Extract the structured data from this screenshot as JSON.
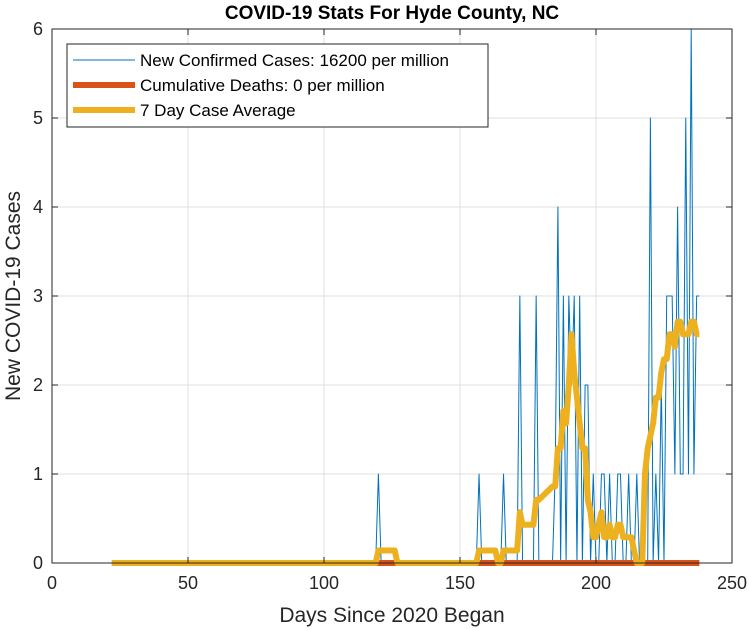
{
  "chart_data": {
    "type": "line",
    "title": "COVID-19 Stats For Hyde County, NC",
    "xlabel": "Days Since 2020 Began",
    "ylabel": "New COVID-19 Cases",
    "xlim": [
      0,
      250
    ],
    "ylim": [
      0,
      6
    ],
    "xticks": [
      0,
      50,
      100,
      150,
      200,
      250
    ],
    "yticks": [
      0,
      1,
      2,
      3,
      4,
      5,
      6
    ],
    "grid": true,
    "legend_position": "top-left",
    "series": [
      {
        "name": "New Confirmed Cases: 16200 per million",
        "color": "#0072BD",
        "x": [
          22,
          119,
          120,
          121,
          156,
          157,
          158,
          165,
          166,
          167,
          171,
          172,
          173,
          177,
          178,
          179,
          184,
          185,
          186,
          187,
          188,
          189,
          190,
          191,
          192,
          193,
          194,
          195,
          196,
          197,
          198,
          199,
          200,
          201,
          202,
          203,
          204,
          205,
          206,
          207,
          208,
          209,
          210,
          211,
          212,
          213,
          214,
          215,
          216,
          217,
          218,
          219,
          220,
          221,
          222,
          223,
          224,
          225,
          226,
          227,
          228,
          229,
          230,
          231,
          232,
          233,
          234,
          235,
          236,
          237,
          238
        ],
        "y": [
          0,
          0,
          1,
          0,
          0,
          1,
          0,
          0,
          1,
          0,
          0,
          3,
          0,
          0,
          3,
          0,
          0,
          1,
          4,
          0,
          3,
          0,
          3,
          2,
          3,
          0,
          3,
          0,
          2,
          2,
          0,
          1,
          0,
          0,
          1,
          1,
          0,
          1,
          0,
          0,
          1,
          1,
          0,
          0,
          1,
          0,
          0,
          1,
          0,
          0,
          0,
          0,
          5,
          0,
          1,
          0,
          2,
          0,
          3,
          3,
          3,
          1,
          4,
          1,
          1,
          5,
          1,
          6,
          1,
          3,
          3
        ]
      },
      {
        "name": "Cumulative Deaths: 0 per million",
        "color": "#D95319",
        "x": [
          22,
          238
        ],
        "y": [
          0,
          0
        ]
      },
      {
        "name": "7 Day Case Average",
        "color": "#EDB120",
        "x": [
          22,
          119,
          120,
          121,
          126,
          127,
          156,
          157,
          158,
          163,
          164,
          165,
          166,
          171,
          172,
          173,
          177,
          178,
          179,
          184,
          185,
          186,
          187,
          188,
          189,
          190,
          191,
          192,
          193,
          194,
          195,
          196,
          197,
          198,
          199,
          200,
          201,
          202,
          203,
          204,
          205,
          206,
          207,
          208,
          209,
          210,
          211,
          212,
          213,
          214,
          215,
          216,
          217,
          218,
          219,
          220,
          221,
          222,
          223,
          224,
          225,
          226,
          227,
          228,
          229,
          230,
          231,
          232,
          233,
          234,
          235,
          236,
          237,
          238
        ],
        "y": [
          0,
          0,
          0.14,
          0.14,
          0.14,
          0,
          0,
          0.14,
          0.14,
          0.14,
          0,
          0,
          0.14,
          0.14,
          0.57,
          0.43,
          0.43,
          0.71,
          0.71,
          0.86,
          0.86,
          1.29,
          1.29,
          1.71,
          1.57,
          2.0,
          2.57,
          2.14,
          1.86,
          1.57,
          1.29,
          1.29,
          0.71,
          0.57,
          0.29,
          0.29,
          0.43,
          0.57,
          0.29,
          0.29,
          0.43,
          0.29,
          0.29,
          0.43,
          0.43,
          0.29,
          0.29,
          0.29,
          0.29,
          0.14,
          0,
          0,
          0,
          1.0,
          1.29,
          1.43,
          1.57,
          1.86,
          1.86,
          2.14,
          2.29,
          2.29,
          2.57,
          2.57,
          2.43,
          2.71,
          2.71,
          2.57,
          2.57,
          2.57,
          2.71,
          2.71,
          2.57,
          2.57
        ]
      }
    ]
  }
}
